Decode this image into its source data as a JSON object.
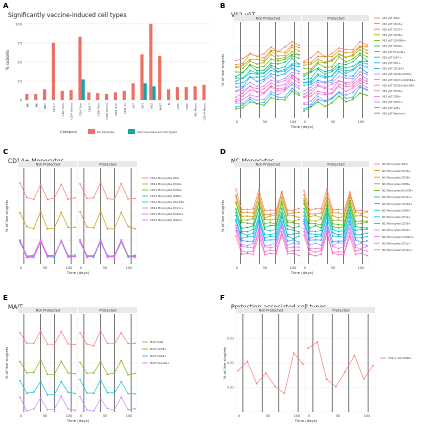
{
  "panels": {
    "A": {
      "letter": "A",
      "title": "Significantly vaccine-induced cell types"
    },
    "B": {
      "letter": "B",
      "title": "Vδ2 γδT"
    },
    "C": {
      "letter": "C",
      "title": "CD14+ Monocytes"
    },
    "D": {
      "letter": "D",
      "title": "NC Monocytes"
    },
    "E": {
      "letter": "E",
      "title": "MAIT"
    },
    "F": {
      "letter": "F",
      "title": "Protection-associated cell types"
    }
  },
  "colors": {
    "all": "#ec7063",
    "protection": "#17a2a8",
    "facet_bg": "#e9e9e9",
    "grid": "#ececec"
  },
  "chart_data": [
    {
      "id": "A",
      "type": "bar",
      "title": "Significantly vaccine-induced cell types",
      "xlabel": "",
      "ylabel": "% subsets",
      "ylim": [
        0,
        105
      ],
      "yticks": [
        0,
        25,
        50,
        75,
        100
      ],
      "legend_title": "Category",
      "legend": [
        "All samples",
        "Vaccine-induced cell types"
      ],
      "categories": [
        "NK ",
        "NK",
        "NKT",
        "CD4 T",
        "CD4 Tem",
        "CD4 Temra",
        "CD4 Tcm",
        "CD8 T",
        "CD8 Tem",
        "CD8 Temra",
        "CD8 Tcm",
        "CD8 Tn",
        "γδT",
        "Vδ1",
        "Vδ2",
        "MAIT",
        "B",
        "pDC",
        "mDC",
        "NC Mono",
        "CD14 Mono"
      ],
      "series": [
        {
          "name": "All samples",
          "values": [
            8,
            8,
            14,
            75,
            12,
            13,
            83,
            10,
            9,
            8,
            10,
            12,
            22,
            60,
            100,
            58,
            14,
            17,
            17,
            18,
            20
          ]
        },
        {
          "name": "Vaccine-induced cell types",
          "values": [
            0,
            0,
            0,
            0,
            0,
            0,
            27,
            0,
            0,
            0,
            0,
            0,
            0,
            22,
            18,
            0,
            0,
            0,
            0,
            0,
            0
          ]
        }
      ]
    },
    {
      "id": "B",
      "type": "line",
      "title": "Vδ2 γδT",
      "xlabel": "Time (days)",
      "ylabel": "% of live singlets",
      "facets": [
        "Not Protected",
        "Protected"
      ],
      "legend": [
        "Vδ2 γδT Total",
        "Vδ2 γδT CD16+",
        "Vδ2 γδT CD27+",
        "Vδ2 γδT CD38+",
        "Vδ2 γδT CD45RA+",
        "Vδ2 γδT CD69+",
        "Vδ2 γδT HLA-DR+",
        "Vδ2 γδT Ki67+",
        "Vδ2 γδT PD1+",
        "Vδ2 γδT CD161+",
        "Vδ2 γδT CD16+CD56+",
        "Vδ2 γδT CD27+CD45RA+",
        "Vδ2 γδT CD38+HLA-DR+",
        "Vδ2 γδT CD56+",
        "Vδ2 γδT CD8+",
        "Vδ2 γδT CD57+",
        "Vδ2 γδT GrB+",
        "Vδ2 γδT Perforin+"
      ]
    },
    {
      "id": "C",
      "type": "line",
      "title": "CD14+ Monocytes",
      "xlabel": "Time (days)",
      "ylabel": "% of live singlets",
      "facets": [
        "Not Protected",
        "Protected"
      ],
      "legend": [
        "CD14 Monocytes Total",
        "CD14 Monocytes CD16+",
        "CD14 Monocytes CD38+",
        "CD14 Monocytes CD86+",
        "CD14 Monocytes HLA-DR+",
        "CD14 Monocytes CD11c+",
        "CD14 Monocytes CD163+",
        "CD14 Monocytes CD64+"
      ]
    },
    {
      "id": "D",
      "type": "line",
      "title": "NC Monocytes",
      "xlabel": "Time (days)",
      "ylabel": "% of live singlets",
      "facets": [
        "Not Protected",
        "Protected"
      ],
      "legend": [
        "NC Monocytes Total",
        "NC Monocytes CD16+",
        "NC Monocytes CD38+",
        "NC Monocytes CD86+",
        "NC Monocytes HLA-DR+",
        "NC Monocytes CD11c+",
        "NC Monocytes CD163+",
        "NC Monocytes CD64+",
        "NC Monocytes CD14+",
        "NC Monocytes CD36+",
        "NC Monocytes CD32+",
        "NC Monocytes CX3CR1+",
        "NC Monocytes CD1c+",
        "NC Monocytes CD141+"
      ]
    },
    {
      "id": "E",
      "type": "line",
      "title": "MAIT",
      "xlabel": "Time (days)",
      "ylabel": "% of live singlets",
      "facets": [
        "Not Protected",
        "Protected"
      ],
      "legend": [
        "MAIT Total",
        "MAIT CD38+",
        "MAIT CD69+",
        "MAIT HLA-DR+"
      ]
    },
    {
      "id": "F",
      "type": "line",
      "title": "Protection-associated cell types",
      "xlabel": "Time (days)",
      "ylabel": "% of live singlets",
      "facets": [
        "Not Protected",
        "Protected"
      ],
      "yticks": [
        0.01,
        0.02,
        0.03
      ],
      "legend": [
        "CD1c+ DC CD86+"
      ]
    }
  ]
}
